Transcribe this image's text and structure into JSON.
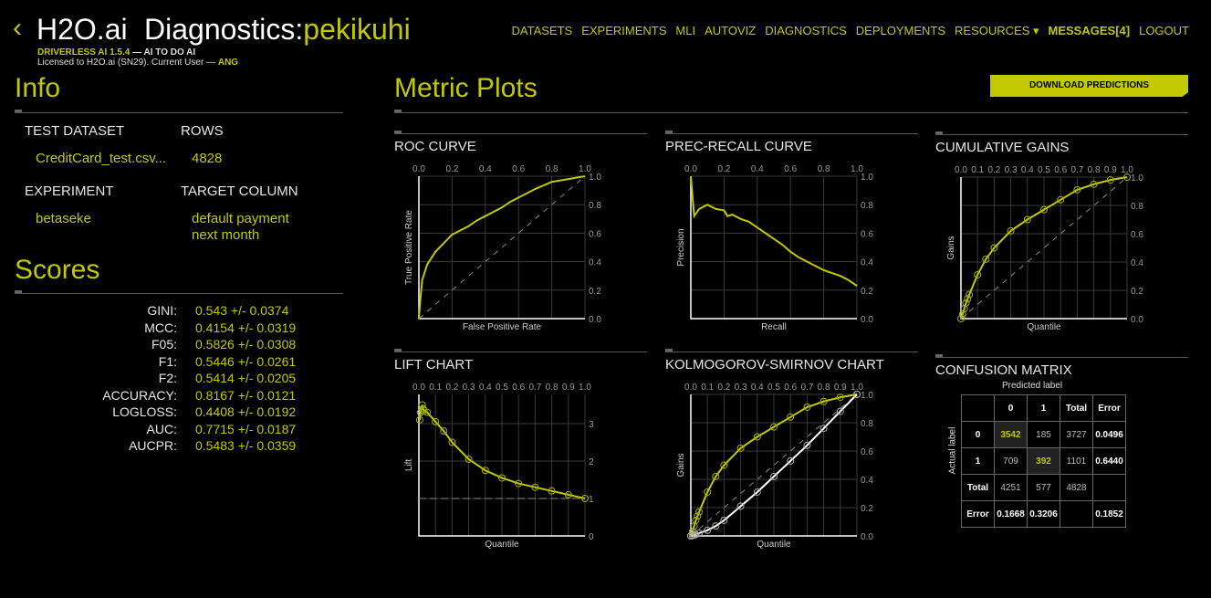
{
  "header": {
    "back_icon": "chevron-left-icon",
    "brand": "H2O.ai",
    "title_prefix": "Diagnostics:",
    "title_name": "pekikuhi",
    "product": "DRIVERLESS AI 1.5.4",
    "tagline": " — AI TO DO AI",
    "license": "Licensed to H2O.ai (SN29). Current User — ",
    "user": "ANG"
  },
  "nav": [
    "DATASETS",
    "EXPERIMENTS",
    "MLI",
    "AUTOVIZ",
    "DIAGNOSTICS",
    "DEPLOYMENTS",
    "RESOURCES ▾",
    "MESSAGES[4]",
    "LOGOUT"
  ],
  "info": {
    "heading": "Info",
    "test_dataset_label": "TEST DATASET",
    "test_dataset": "CreditCard_test.csv...",
    "rows_label": "ROWS",
    "rows": "4828",
    "experiment_label": "EXPERIMENT",
    "experiment": "betaseke",
    "target_label": "TARGET COLUMN",
    "target_line1": "default payment",
    "target_line2": "next month"
  },
  "scores": {
    "heading": "Scores",
    "items": [
      {
        "k": "GINI:",
        "v": "0.543 +/- 0.0374"
      },
      {
        "k": "MCC:",
        "v": "0.4154 +/- 0.0319"
      },
      {
        "k": "F05:",
        "v": "0.5826 +/- 0.0308"
      },
      {
        "k": "F1:",
        "v": "0.5446 +/- 0.0261"
      },
      {
        "k": "F2:",
        "v": "0.5414 +/- 0.0205"
      },
      {
        "k": "ACCURACY:",
        "v": "0.8167 +/- 0.0121"
      },
      {
        "k": "LOGLOSS:",
        "v": "0.4408 +/- 0.0192"
      },
      {
        "k": "AUC:",
        "v": "0.7715 +/- 0.0187"
      },
      {
        "k": "AUCPR:",
        "v": "0.5483 +/- 0.0359"
      }
    ]
  },
  "metric": {
    "heading": "Metric Plots",
    "download": "DOWNLOAD PREDICTIONS"
  },
  "colors": {
    "accent": "#c2c900",
    "secondary": "#ffffff"
  },
  "chart_data": [
    {
      "id": "roc",
      "type": "line",
      "title": "ROC CURVE",
      "xlabel": "False Positive Rate",
      "ylabel": "True Positive Rate",
      "xlim": [
        0,
        1
      ],
      "ylim": [
        0,
        1
      ],
      "xticks": [
        "0.0",
        "0.2",
        "0.4",
        "0.6",
        "0.8",
        "1.0"
      ],
      "yticks": [
        "0.0",
        "0.2",
        "0.4",
        "0.6",
        "0.8",
        "1.0"
      ],
      "diagonal": true,
      "grid": true,
      "series": [
        {
          "x": [
            0,
            0.01,
            0.02,
            0.05,
            0.1,
            0.15,
            0.2,
            0.25,
            0.3,
            0.35,
            0.4,
            0.45,
            0.5,
            0.55,
            0.6,
            0.65,
            0.7,
            0.8,
            0.9,
            1
          ],
          "y": [
            0,
            0.15,
            0.27,
            0.38,
            0.47,
            0.53,
            0.59,
            0.62,
            0.65,
            0.69,
            0.72,
            0.75,
            0.78,
            0.82,
            0.85,
            0.88,
            0.91,
            0.96,
            0.98,
            1
          ],
          "color": "#c2c900",
          "markers": false
        }
      ]
    },
    {
      "id": "pr",
      "type": "line",
      "title": "PREC-RECALL CURVE",
      "xlabel": "Recall",
      "ylabel": "Precision",
      "xlim": [
        0,
        1
      ],
      "ylim": [
        0,
        1
      ],
      "xticks": [
        "0.0",
        "0.2",
        "0.4",
        "0.6",
        "0.8",
        "1.0"
      ],
      "yticks": [
        "0.0",
        "0.2",
        "0.4",
        "0.6",
        "0.8",
        "1.0"
      ],
      "diagonal": false,
      "grid": true,
      "series": [
        {
          "x": [
            0,
            0.02,
            0.05,
            0.1,
            0.15,
            0.2,
            0.22,
            0.25,
            0.3,
            0.35,
            0.4,
            0.45,
            0.5,
            0.55,
            0.6,
            0.65,
            0.7,
            0.75,
            0.8,
            0.85,
            0.9,
            0.95,
            1
          ],
          "y": [
            1,
            0.72,
            0.77,
            0.8,
            0.77,
            0.76,
            0.72,
            0.73,
            0.7,
            0.68,
            0.64,
            0.6,
            0.56,
            0.52,
            0.47,
            0.43,
            0.4,
            0.37,
            0.34,
            0.32,
            0.3,
            0.27,
            0.23
          ],
          "color": "#c2c900",
          "markers": false
        }
      ]
    },
    {
      "id": "gains",
      "type": "line",
      "title": "CUMULATIVE GAINS",
      "xlabel": "Quantile",
      "ylabel": "Gains",
      "xlim": [
        0,
        1
      ],
      "ylim": [
        0,
        1
      ],
      "xticks": [
        "0.0",
        "0.1",
        "0.2",
        "0.3",
        "0.4",
        "0.5",
        "0.6",
        "0.7",
        "0.8",
        "0.9",
        "1.0"
      ],
      "yticks": [
        "0.0",
        "0.2",
        "0.4",
        "0.6",
        "0.8",
        "1.0"
      ],
      "diagonal": true,
      "grid": true,
      "series": [
        {
          "x": [
            0,
            0.01,
            0.02,
            0.03,
            0.04,
            0.05,
            0.1,
            0.15,
            0.2,
            0.3,
            0.4,
            0.5,
            0.6,
            0.7,
            0.8,
            0.9,
            1
          ],
          "y": [
            0,
            0.03,
            0.07,
            0.11,
            0.14,
            0.17,
            0.31,
            0.42,
            0.5,
            0.62,
            0.7,
            0.77,
            0.84,
            0.91,
            0.95,
            0.98,
            1
          ],
          "color": "#c2c900",
          "markers": true
        }
      ]
    },
    {
      "id": "lift",
      "type": "line",
      "title": "LIFT CHART",
      "xlabel": "Quantile",
      "ylabel": "Lift",
      "xlim": [
        0,
        1
      ],
      "ylim": [
        0,
        3.78
      ],
      "xticks": [
        "0.0",
        "0.1",
        "0.2",
        "0.3",
        "0.4",
        "0.5",
        "0.6",
        "0.7",
        "0.8",
        "0.9",
        "1.0"
      ],
      "yticks": [
        "0",
        "1",
        "2",
        "3"
      ],
      "baseline": 1,
      "grid": true,
      "series": [
        {
          "x": [
            0.005,
            0.01,
            0.02,
            0.025,
            0.03,
            0.05,
            0.1,
            0.15,
            0.2,
            0.3,
            0.4,
            0.5,
            0.6,
            0.7,
            0.8,
            0.9,
            1
          ],
          "y": [
            3.1,
            3.3,
            3.5,
            3.4,
            3.35,
            3.3,
            3.05,
            2.8,
            2.5,
            2.05,
            1.75,
            1.55,
            1.4,
            1.3,
            1.2,
            1.1,
            1.0
          ],
          "color": "#c2c900",
          "markers": true
        }
      ]
    },
    {
      "id": "ks",
      "type": "line",
      "title": "KOLMOGOROV-SMIRNOV CHART",
      "xlabel": "Quantile",
      "ylabel": "Gains",
      "xlim": [
        0,
        1
      ],
      "ylim": [
        0,
        1
      ],
      "xticks": [
        "0.0",
        "0.1",
        "0.2",
        "0.3",
        "0.4",
        "0.5",
        "0.6",
        "0.7",
        "0.8",
        "0.9",
        "1.0"
      ],
      "yticks": [
        "0.0",
        "0.2",
        "0.4",
        "0.6",
        "0.8",
        "1.0"
      ],
      "diagonal": true,
      "grid": true,
      "series": [
        {
          "x": [
            0,
            0.01,
            0.02,
            0.03,
            0.04,
            0.05,
            0.1,
            0.15,
            0.2,
            0.3,
            0.4,
            0.5,
            0.6,
            0.7,
            0.8,
            0.9,
            1
          ],
          "y": [
            0,
            0.03,
            0.07,
            0.11,
            0.14,
            0.17,
            0.31,
            0.42,
            0.5,
            0.62,
            0.7,
            0.77,
            0.84,
            0.91,
            0.95,
            0.98,
            1
          ],
          "color": "#c2c900",
          "markers": true
        },
        {
          "x": [
            0,
            0.01,
            0.02,
            0.03,
            0.05,
            0.1,
            0.15,
            0.2,
            0.3,
            0.4,
            0.5,
            0.6,
            0.7,
            0.8,
            0.9,
            1
          ],
          "y": [
            0,
            0.003,
            0.006,
            0.01,
            0.02,
            0.04,
            0.07,
            0.11,
            0.21,
            0.31,
            0.42,
            0.53,
            0.64,
            0.76,
            0.88,
            1
          ],
          "color": "#ffffff",
          "markers": true
        }
      ]
    }
  ],
  "confusion": {
    "title": "CONFUSION MATRIX",
    "predicted_label": "Predicted label",
    "actual_label": "Actual label",
    "header": [
      "",
      "0",
      "1",
      "Total",
      "Error"
    ],
    "rows": [
      [
        "0",
        "3542",
        "185",
        "3727",
        "0.0496"
      ],
      [
        "1",
        "709",
        "392",
        "1101",
        "0.6440"
      ],
      [
        "Total",
        "4251",
        "577",
        "4828",
        ""
      ],
      [
        "Error",
        "0.1668",
        "0.3206",
        "",
        "0.1852"
      ]
    ]
  }
}
